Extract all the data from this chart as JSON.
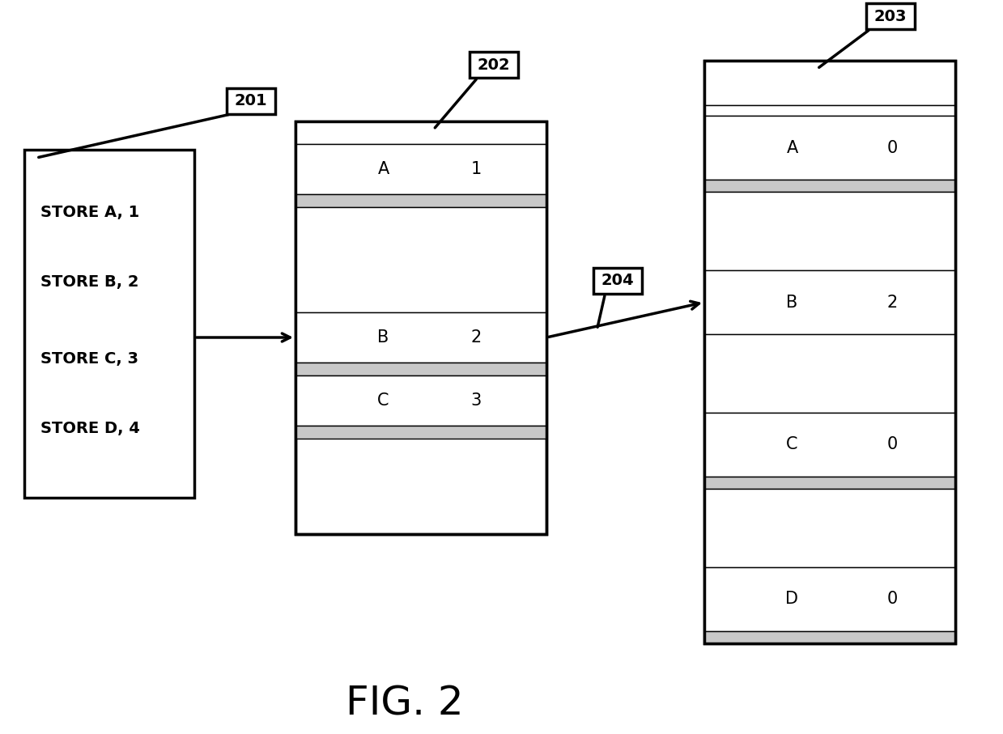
{
  "fig_label": "FIG. 2",
  "background_color": "#ffffff",
  "label_201": "201",
  "label_202": "202",
  "label_203": "203",
  "label_204": "204",
  "box201_lines": [
    "STORE A, 1",
    "STORE B, 2",
    "STORE C, 3",
    "STORE D, 4"
  ],
  "shaded_color": "#c8c8c8",
  "white_color": "#ffffff",
  "border_color": "#000000",
  "text_color": "#000000"
}
